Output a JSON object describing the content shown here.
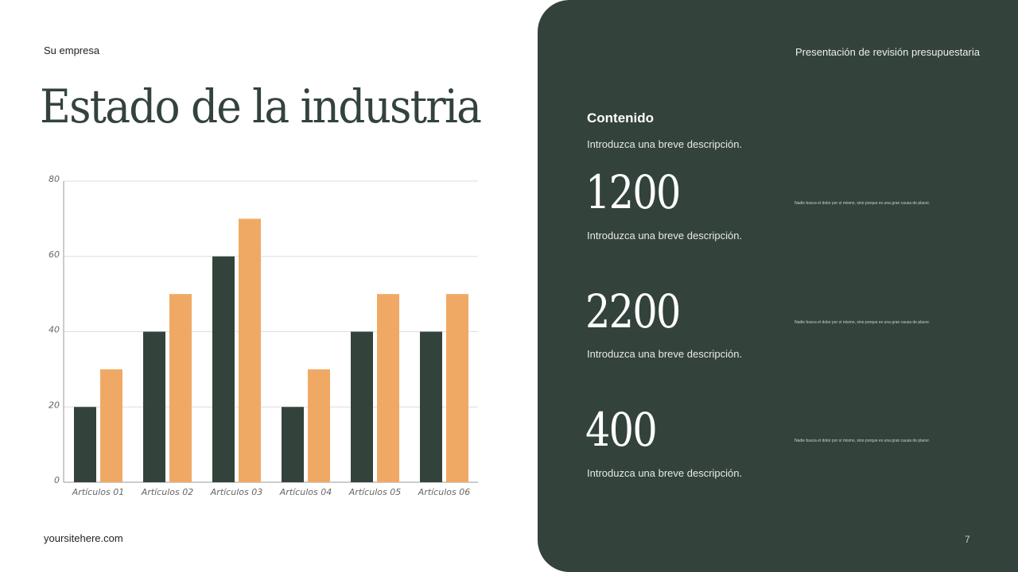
{
  "header": {
    "company": "Su empresa",
    "title": "Estado de la industria",
    "presentation_title": "Presentación de revisión presupuestaria"
  },
  "footer": {
    "website": "yoursitehere.com",
    "page_number": "7"
  },
  "panel": {
    "heading": "Contenido",
    "intro": "Introduzca una breve descripción.",
    "stats": [
      {
        "value": "1200",
        "description": "Introduzca una breve descripción.",
        "note": "Nadie busca el dolor por sí mismo, sino porque es una gran causa de placer."
      },
      {
        "value": "2200",
        "description": "Introduzca una breve descripción.",
        "note": "Nadie busca el dolor por sí mismo, sino porque es una gran causa de placer."
      },
      {
        "value": "400",
        "description": "Introduzca una breve descripción.",
        "note": "Nadie busca el dolor por sí mismo, sino porque es una gran causa de placer."
      }
    ]
  },
  "colors": {
    "dark_green": "#33433c",
    "orange": "#f0a965"
  },
  "chart_data": {
    "type": "bar",
    "categories": [
      "Artículos 01",
      "Artículos 02",
      "Artículos 03",
      "Artículos 04",
      "Artículos 05",
      "Artículos 06"
    ],
    "series": [
      {
        "values": [
          20,
          40,
          60,
          20,
          40,
          40
        ],
        "color": "#33433c"
      },
      {
        "values": [
          30,
          50,
          70,
          30,
          50,
          50
        ],
        "color": "#f0a965"
      }
    ],
    "yticks": [
      "0",
      "20",
      "40",
      "60",
      "80"
    ],
    "ylim": [
      0,
      80
    ],
    "grid": true
  }
}
